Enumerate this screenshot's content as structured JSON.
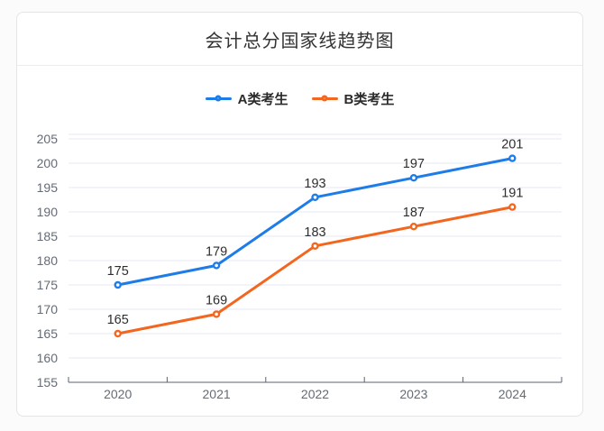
{
  "card": {
    "title": "会计总分国家线趋势图"
  },
  "chart_data": {
    "type": "line",
    "title": "会计总分国家线趋势图",
    "categories": [
      "2020",
      "2021",
      "2022",
      "2023",
      "2024"
    ],
    "series": [
      {
        "name": "A类考生",
        "color": "#1e7ce8",
        "values": [
          175,
          179,
          193,
          197,
          201
        ]
      },
      {
        "name": "B类考生",
        "color": "#f2661f",
        "values": [
          165,
          169,
          183,
          187,
          191
        ]
      }
    ],
    "yticks": [
      155,
      160,
      165,
      170,
      175,
      180,
      185,
      190,
      195,
      200,
      205
    ],
    "ylim": [
      155,
      205
    ],
    "y_step": 5,
    "xlabel": "",
    "ylabel": "",
    "grid": true,
    "legend_position": "top",
    "value_labels_shown": true
  },
  "colors": {
    "grid_line": "#e4e9f3",
    "axis_line": "#5a6170",
    "axis_label": "#646b76",
    "value_label": "#2e2e2e",
    "title_text": "#333333",
    "legend_text": "#2b2b2b",
    "card_border": "#e5e5e5",
    "card_bg": "#ffffff",
    "page_bg": "#fbfbfb",
    "marker_fill": "#ffffff"
  }
}
